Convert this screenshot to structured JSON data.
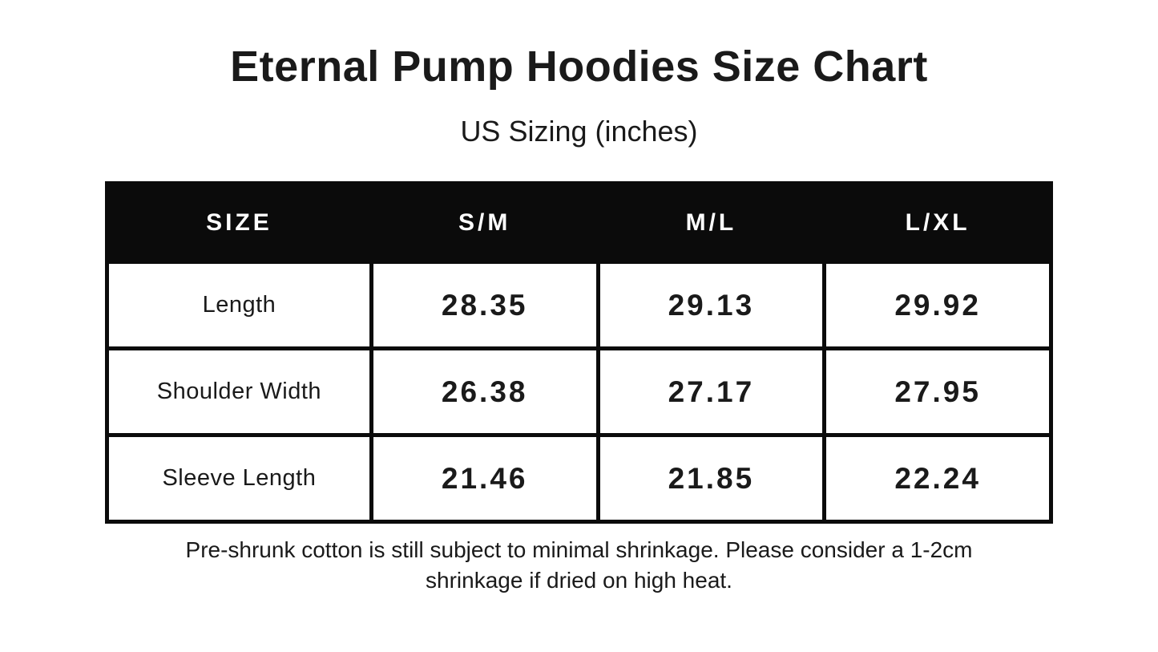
{
  "header": {
    "title": "Eternal Pump Hoodies Size Chart",
    "subtitle": "US Sizing (inches)"
  },
  "table": {
    "columns": [
      "SIZE",
      "S/M",
      "M/L",
      "L/XL"
    ],
    "rows": [
      {
        "label": "Length",
        "values": [
          "28.35",
          "29.13",
          "29.92"
        ]
      },
      {
        "label": "Shoulder Width",
        "values": [
          "26.38",
          "27.17",
          "27.95"
        ]
      },
      {
        "label": "Sleeve Length",
        "values": [
          "21.46",
          "21.85",
          "22.24"
        ]
      }
    ]
  },
  "footer": {
    "line1": "Pre-shrunk cotton is still subject to minimal shrinkage. Please consider a 1-2cm",
    "line2": "shrinkage if dried on high heat."
  },
  "colors": {
    "background": "#ffffff",
    "header_band": "#0b0b0b",
    "border": "#0b0b0b",
    "text": "#1a1a1a",
    "header_text": "#ffffff"
  },
  "chart_data": {
    "type": "table",
    "title": "Eternal Pump Hoodies Size Chart",
    "subtitle": "US Sizing (inches)",
    "unit": "inches",
    "columns": [
      "SIZE",
      "S/M",
      "M/L",
      "L/XL"
    ],
    "rows": [
      [
        "Length",
        28.35,
        29.13,
        29.92
      ],
      [
        "Shoulder Width",
        26.38,
        27.17,
        27.95
      ],
      [
        "Sleeve Length",
        21.46,
        21.85,
        22.24
      ]
    ],
    "note": "Pre-shrunk cotton is still subject to minimal shrinkage. Please consider a 1-2cm shrinkage if dried on high heat."
  }
}
